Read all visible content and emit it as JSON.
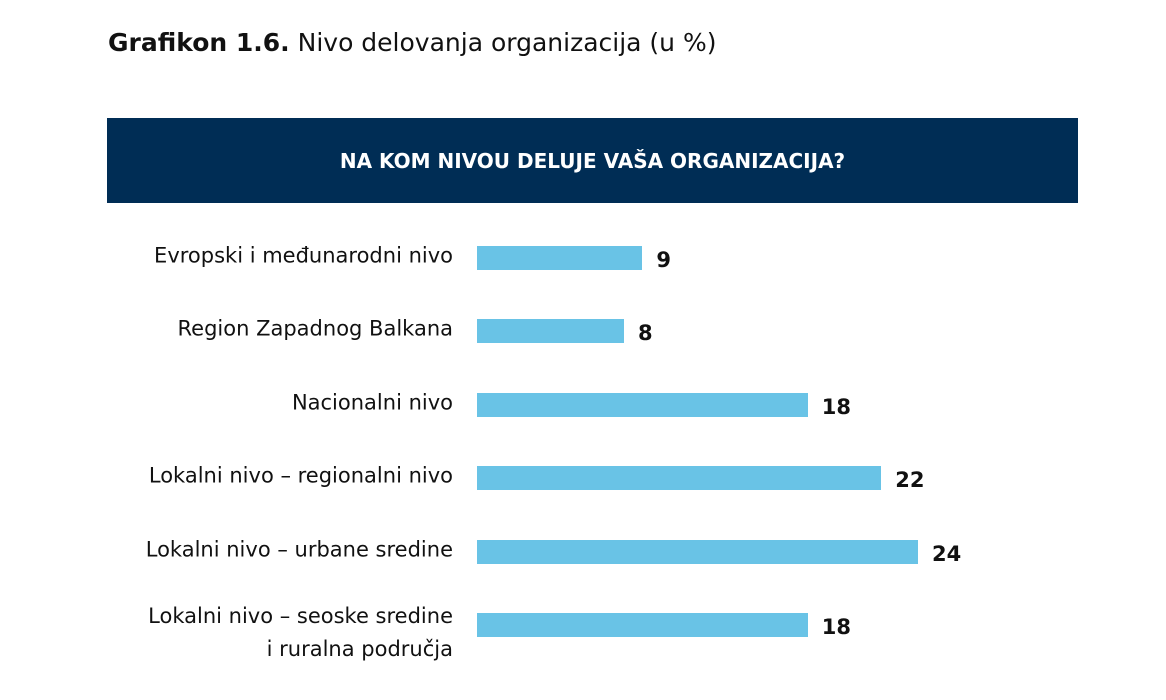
{
  "chart_data": {
    "type": "bar",
    "orientation": "horizontal",
    "title_prefix": "Grafikon 1.6.",
    "title": "Nivo delovanja organizacija (u %)",
    "subtitle": "NA KOM NIVOU DELUJE VAŠA ORGANIZACIJA?",
    "categories": [
      "Evropski i međunarodni nivo",
      "Region Zapadnog Balkana",
      "Nacionalni nivo",
      "Lokalni nivo – regionalni nivo",
      "Lokalni nivo – urbane sredine",
      "Lokalni nivo – seoske sredine\ni ruralna područja"
    ],
    "values": [
      9,
      8,
      18,
      22,
      24,
      18
    ],
    "color": "#69c3e6"
  }
}
